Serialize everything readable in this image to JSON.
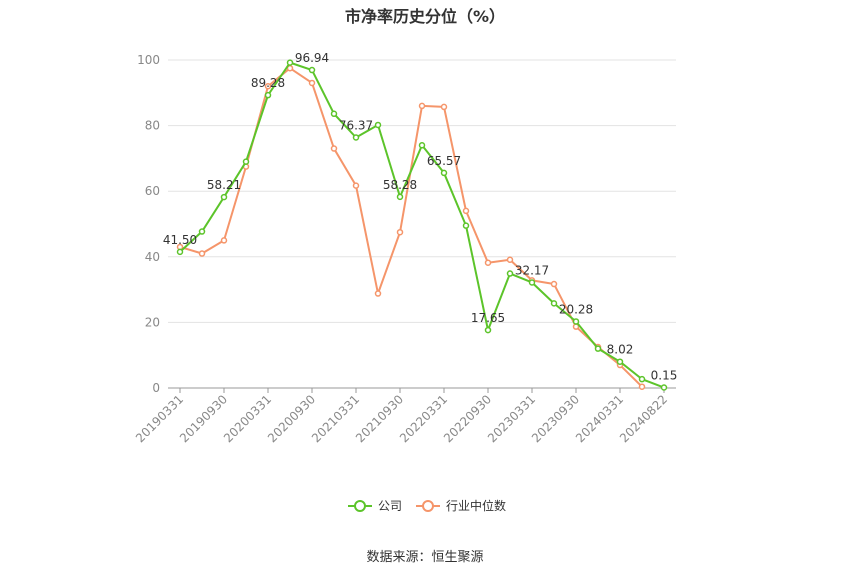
{
  "chart_data": {
    "type": "line",
    "title": "市净率历史分位（%）",
    "ylim": [
      0,
      100
    ],
    "yticks": [
      0,
      20,
      40,
      60,
      80,
      100
    ],
    "x": [
      "20190331",
      "20190630",
      "20190930",
      "20191231",
      "20200331",
      "20200630",
      "20200930",
      "20201231",
      "20210331",
      "20210630",
      "20210930",
      "20211231",
      "20220331",
      "20220630",
      "20220930",
      "20221231",
      "20230331",
      "20230630",
      "20230930",
      "20231231",
      "20240331",
      "20240630",
      "20240822"
    ],
    "xtick_labels": [
      "20190331",
      "20190930",
      "20200331",
      "20200930",
      "20210331",
      "20210930",
      "20220331",
      "20220930",
      "20230331",
      "20230930",
      "20240331",
      "20240822"
    ],
    "legend_position": "bottom-center",
    "grid": true,
    "series": [
      {
        "name": "公司",
        "color": "#5cc42a",
        "values": [
          41.5,
          47.7,
          58.21,
          69.0,
          89.28,
          99.2,
          96.94,
          83.6,
          76.37,
          80.2,
          58.28,
          74.0,
          65.57,
          49.5,
          17.65,
          34.9,
          32.17,
          25.8,
          20.28,
          12.0,
          8.02,
          2.7,
          0.15
        ],
        "labeled_points": [
          {
            "index": 0,
            "text": "41.50"
          },
          {
            "index": 2,
            "text": "58.21"
          },
          {
            "index": 4,
            "text": "89.28"
          },
          {
            "index": 6,
            "text": "96.94"
          },
          {
            "index": 8,
            "text": "76.37"
          },
          {
            "index": 10,
            "text": "58.28"
          },
          {
            "index": 12,
            "text": "65.57"
          },
          {
            "index": 14,
            "text": "17.65"
          },
          {
            "index": 16,
            "text": "32.17"
          },
          {
            "index": 18,
            "text": "20.28"
          },
          {
            "index": 20,
            "text": "8.02"
          },
          {
            "index": 22,
            "text": "0.15"
          }
        ]
      },
      {
        "name": "行业中位数",
        "color": "#f5956a",
        "values": [
          43.0,
          41.0,
          45.0,
          67.5,
          92.0,
          97.5,
          93.0,
          73.0,
          61.7,
          28.8,
          47.5,
          86.0,
          85.7,
          54.0,
          38.2,
          39.1,
          32.8,
          31.7,
          18.7,
          12.5,
          7.0,
          0.4,
          null
        ]
      }
    ]
  },
  "source_note": "数据来源：恒生聚源"
}
